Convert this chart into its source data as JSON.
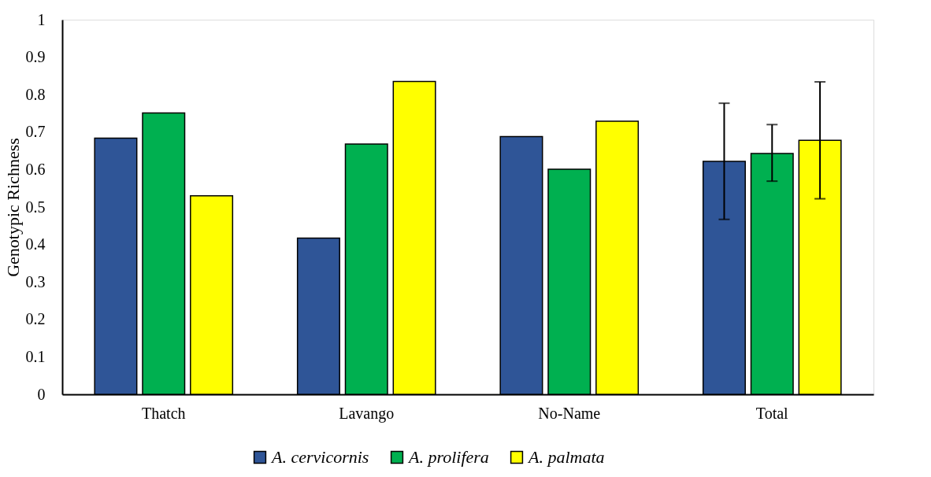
{
  "chart_data": {
    "type": "bar",
    "ylabel": "Genotypic Richness",
    "categories": [
      "Thatch",
      "Lavango",
      "No-Name",
      "Total"
    ],
    "series": [
      {
        "name": "A. cervicornis",
        "color": "#2f5597",
        "values": [
          0.684,
          0.417,
          0.688,
          0.622
        ],
        "errors": [
          null,
          null,
          null,
          [
            0.467,
            0.777
          ]
        ]
      },
      {
        "name": "A. prolifera",
        "color": "#00b050",
        "values": [
          0.751,
          0.668,
          0.601,
          0.643
        ],
        "errors": [
          null,
          null,
          null,
          [
            0.569,
            0.72
          ]
        ]
      },
      {
        "name": "A. palmata",
        "color": "#ffff00",
        "values": [
          0.53,
          0.835,
          0.729,
          0.678
        ],
        "errors": [
          null,
          null,
          null,
          [
            0.522,
            0.834
          ]
        ]
      }
    ],
    "ylim": [
      0,
      1
    ],
    "yticks": [
      0,
      0.1,
      0.2,
      0.3,
      0.4,
      0.5,
      0.6,
      0.7,
      0.8,
      0.9,
      1
    ],
    "grid": false,
    "legend": "bottom"
  }
}
